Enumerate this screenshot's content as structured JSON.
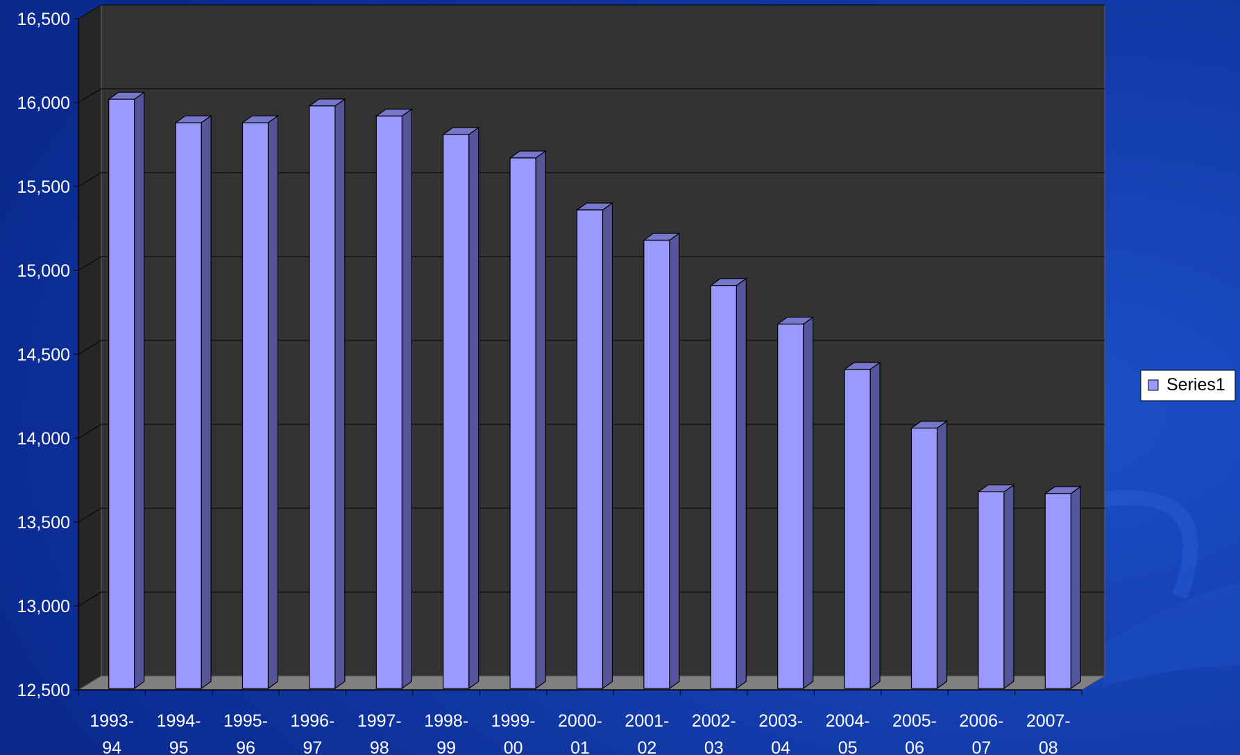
{
  "colors": {
    "background": "#0a2a8f",
    "background_light": "#1c4fc9",
    "plot_back": "#333333",
    "plot_floor": "#808080",
    "bar_front": "#9999ff",
    "bar_side": "#55559a",
    "bar_top": "#7777cc",
    "gridline": "#000000",
    "axis_text": "#ffffff",
    "legend_bg": "#ffffff",
    "legend_text": "#000000"
  },
  "legend": {
    "label": "Series1",
    "position": "right"
  },
  "chart_data": {
    "type": "bar",
    "title": "",
    "xlabel": "",
    "ylabel": "",
    "ylim": [
      12500,
      16500
    ],
    "yticks": [
      12500,
      13000,
      13500,
      14000,
      14500,
      15000,
      15500,
      16000,
      16500
    ],
    "ytick_labels": [
      "12,500",
      "13,000",
      "13,500",
      "14,000",
      "14,500",
      "15,000",
      "15,500",
      "16,000",
      "16,500"
    ],
    "grid": true,
    "categories": [
      [
        "1993-",
        "94"
      ],
      [
        "1994-",
        "95"
      ],
      [
        "1995-",
        "96"
      ],
      [
        "1996-",
        "97"
      ],
      [
        "1997-",
        "98"
      ],
      [
        "1998-",
        "99"
      ],
      [
        "1999-",
        "00"
      ],
      [
        "2000-",
        "01"
      ],
      [
        "2001-",
        "02"
      ],
      [
        "2002-",
        "03"
      ],
      [
        "2003-",
        "04"
      ],
      [
        "2004-",
        "05"
      ],
      [
        "2005-",
        "06"
      ],
      [
        "2006-",
        "07"
      ],
      [
        "2007-",
        "08"
      ]
    ],
    "series": [
      {
        "name": "Series1",
        "values": [
          16020,
          15880,
          15880,
          15980,
          15920,
          15810,
          15670,
          15360,
          15180,
          14910,
          14680,
          14410,
          14060,
          13680,
          13670
        ]
      }
    ]
  }
}
